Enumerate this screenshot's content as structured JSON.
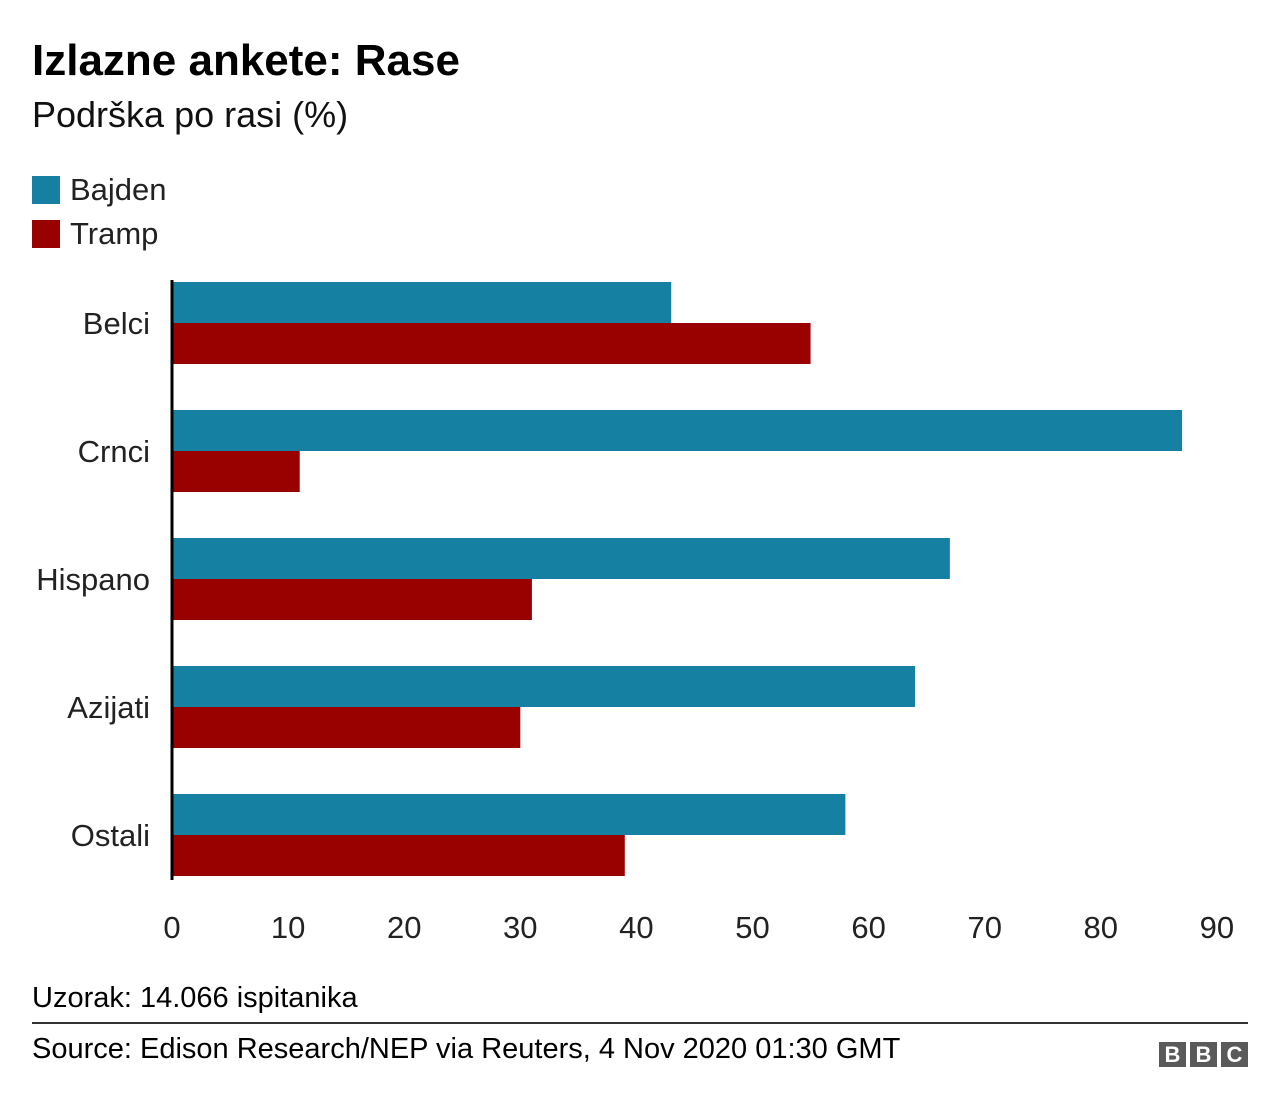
{
  "chart_data": {
    "type": "bar",
    "orientation": "horizontal",
    "title": "Izlazne ankete: Rase",
    "subtitle": "Podrška po rasi (%)",
    "categories": [
      "Belci",
      "Crnci",
      "Hispano",
      "Azijati",
      "Ostali"
    ],
    "series": [
      {
        "name": "Bajden",
        "color": "#1580a1",
        "values": [
          43,
          87,
          67,
          64,
          58
        ]
      },
      {
        "name": "Tramp",
        "color": "#990000",
        "values": [
          55,
          11,
          31,
          30,
          39
        ]
      }
    ],
    "xlim": [
      0,
      90
    ],
    "xticks": [
      0,
      10,
      20,
      30,
      40,
      50,
      60,
      70,
      80,
      90
    ],
    "legend_position": "top-left",
    "grid": false
  },
  "note": "Uzorak: 14.066 ispitanika",
  "source": "Source: Edison Research/NEP via Reuters, 4 Nov 2020 01:30 GMT",
  "logo": {
    "letters": [
      "B",
      "B",
      "C"
    ]
  }
}
